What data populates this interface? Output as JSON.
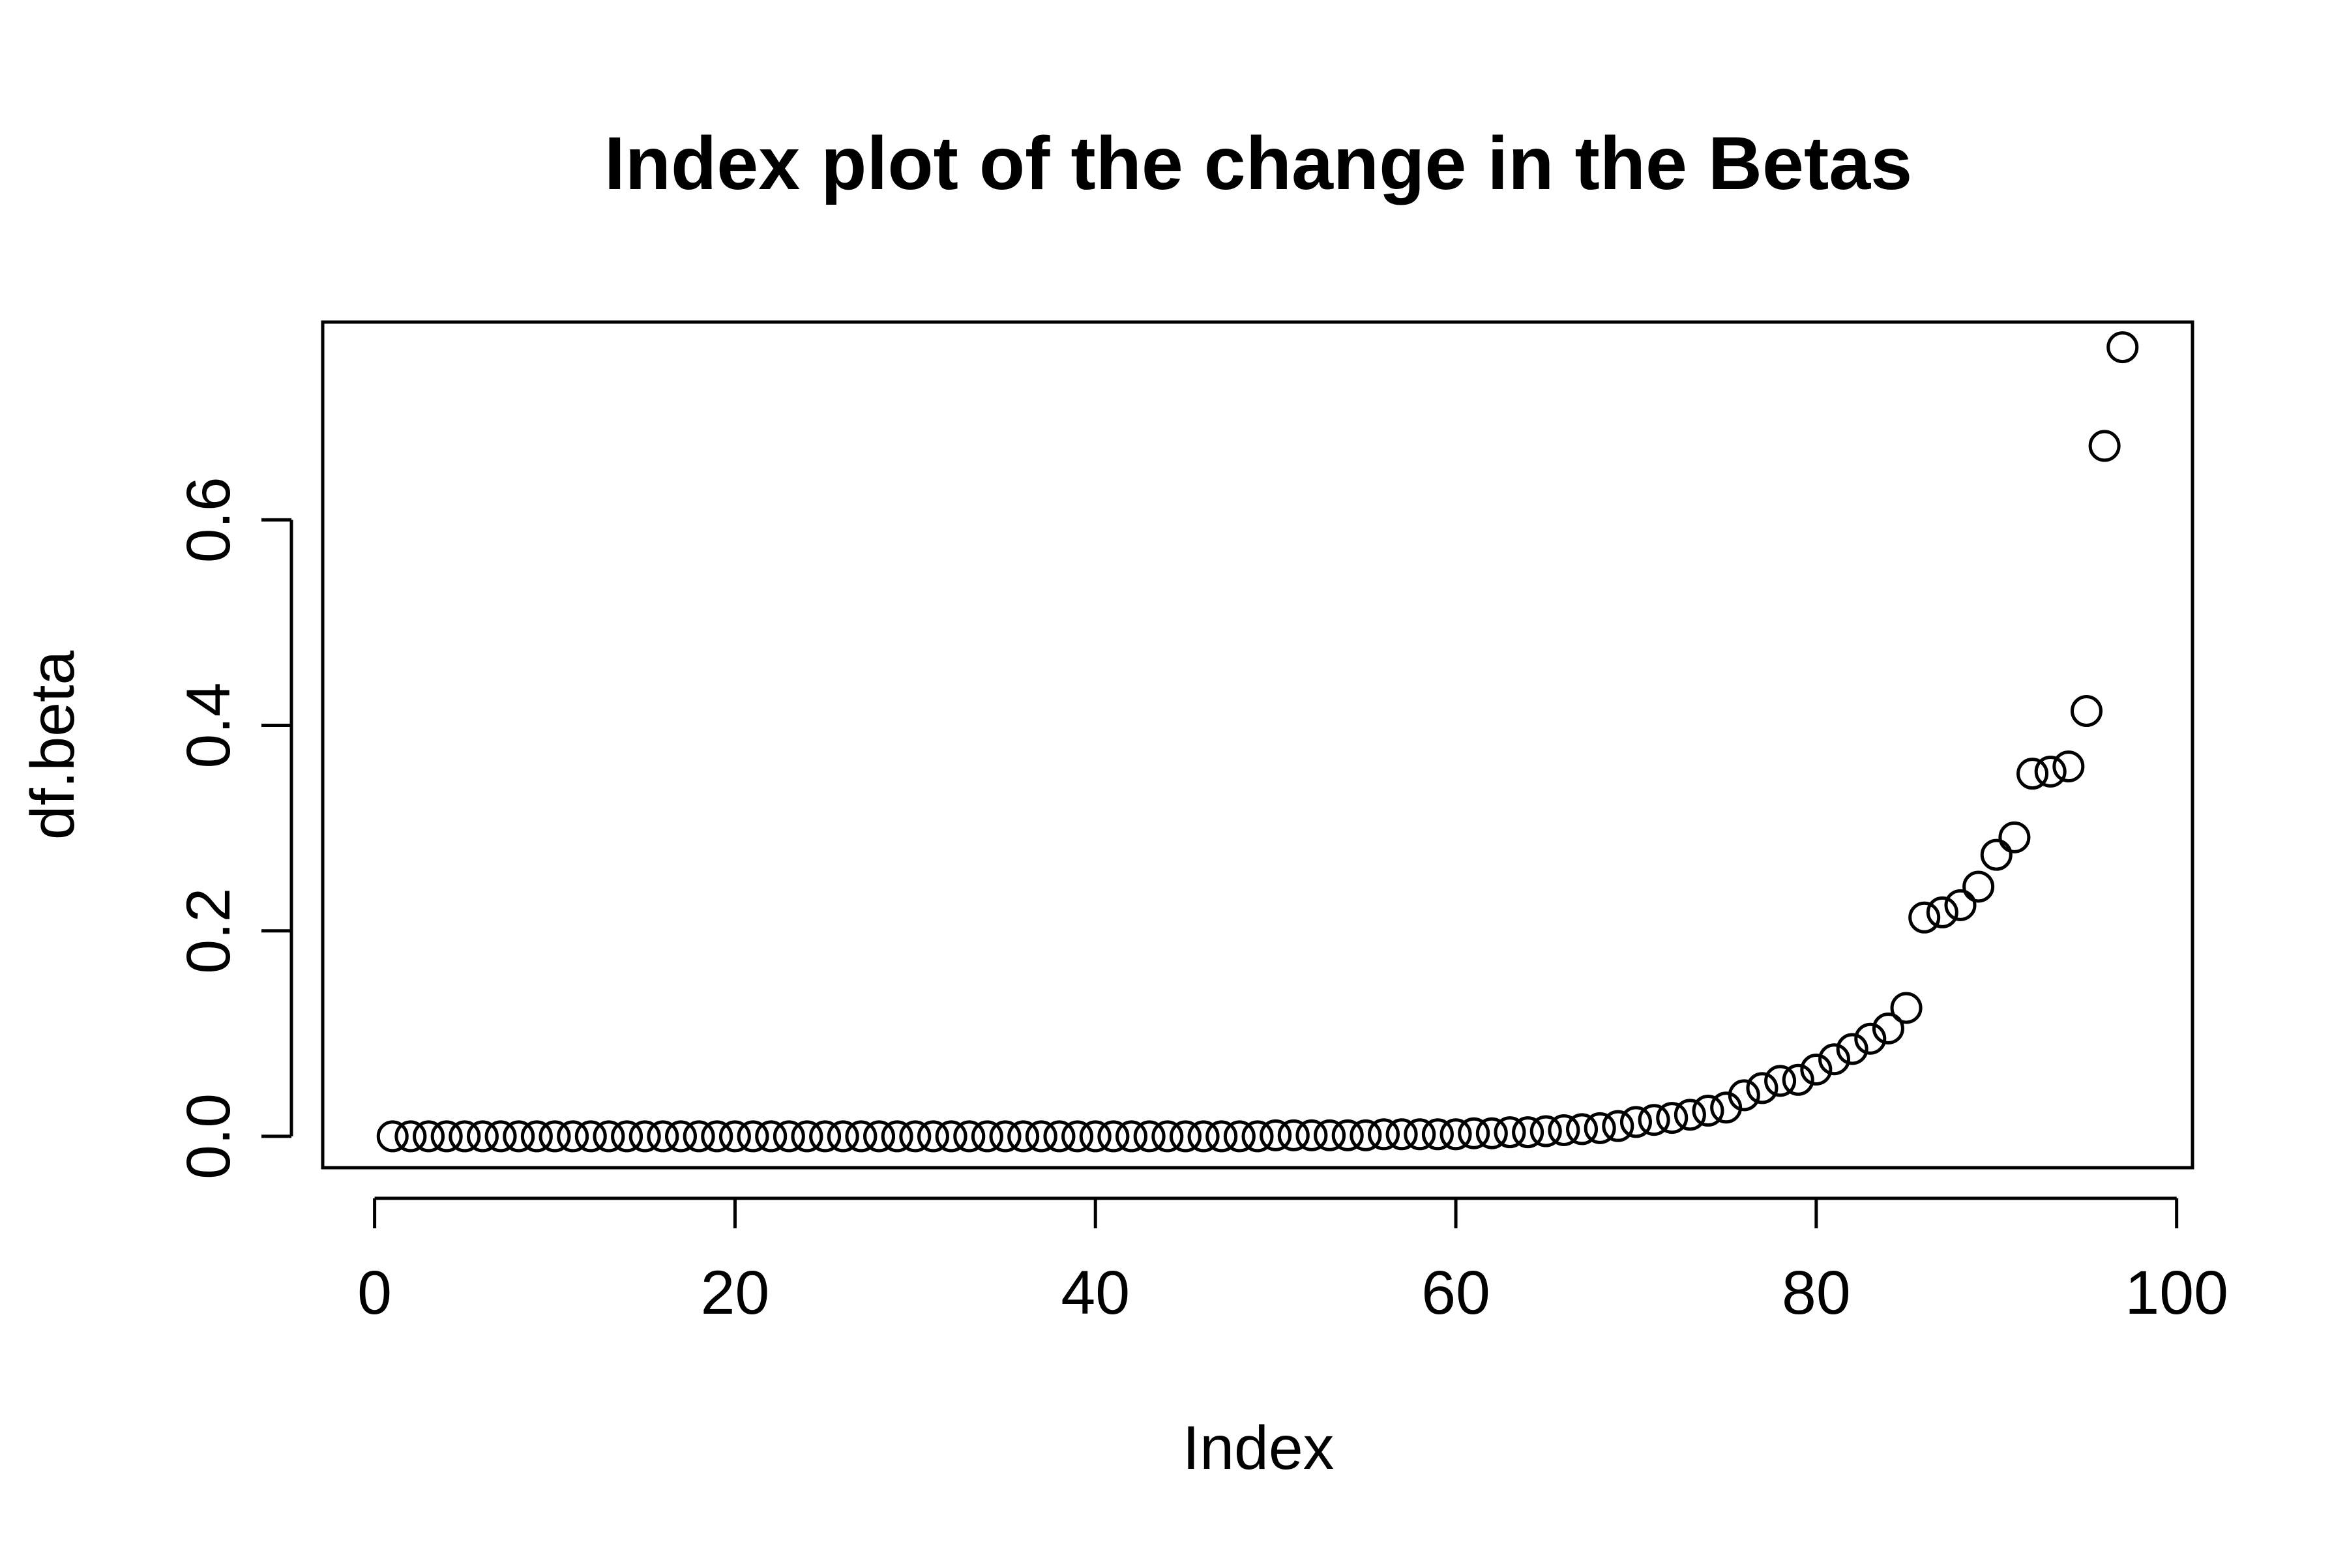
{
  "chart_data": {
    "type": "scatter",
    "title": "Index plot of the change in the Betas",
    "xlabel": "Index",
    "ylabel": "df.beta",
    "xlim": [
      -2.88,
      100.88
    ],
    "ylim": [
      -0.0305,
      0.7925
    ],
    "xticks": [
      0,
      20,
      40,
      60,
      80,
      100
    ],
    "yticks": [
      0.0,
      0.2,
      0.4,
      0.6
    ],
    "xtick_labels": [
      "0",
      "20",
      "40",
      "60",
      "80",
      "100"
    ],
    "ytick_labels": [
      "0.0",
      "0.2",
      "0.4",
      "0.6"
    ],
    "grid": false,
    "legend": "none",
    "marker": "open-circle",
    "x": [
      1,
      2,
      3,
      4,
      5,
      6,
      7,
      8,
      9,
      10,
      11,
      12,
      13,
      14,
      15,
      16,
      17,
      18,
      19,
      20,
      21,
      22,
      23,
      24,
      25,
      26,
      27,
      28,
      29,
      30,
      31,
      32,
      33,
      34,
      35,
      36,
      37,
      38,
      39,
      40,
      41,
      42,
      43,
      44,
      45,
      46,
      47,
      48,
      49,
      50,
      51,
      52,
      53,
      54,
      55,
      56,
      57,
      58,
      59,
      60,
      61,
      62,
      63,
      64,
      65,
      66,
      67,
      68,
      69,
      70,
      71,
      72,
      73,
      74,
      75,
      76,
      77,
      78,
      79,
      80,
      81,
      82,
      83,
      84,
      85,
      86,
      87,
      88,
      89,
      90,
      91,
      92,
      93,
      94,
      95,
      96,
      97
    ],
    "y": [
      0.0,
      0.0,
      0.0,
      0.0,
      0.0,
      0.0,
      0.0,
      0.0,
      0.0,
      0.0,
      0.0,
      0.0,
      0.0,
      0.0,
      0.0,
      0.0,
      0.0,
      0.0,
      0.0,
      0.0,
      0.0,
      0.0,
      0.0,
      0.0,
      0.0,
      0.0,
      0.0,
      0.0,
      0.0,
      0.0,
      0.0,
      0.0,
      0.0,
      0.0,
      0.0,
      0.0,
      0.0,
      0.0,
      0.0,
      0.0,
      0.0,
      0.0,
      0.0,
      0.0,
      0.0,
      0.0,
      0.0,
      0.0,
      0.0,
      0.001,
      0.001,
      0.001,
      0.001,
      0.001,
      0.001,
      0.002,
      0.002,
      0.002,
      0.002,
      0.002,
      0.003,
      0.003,
      0.004,
      0.004,
      0.005,
      0.006,
      0.007,
      0.008,
      0.01,
      0.014,
      0.016,
      0.018,
      0.021,
      0.025,
      0.028,
      0.04,
      0.047,
      0.054,
      0.055,
      0.065,
      0.075,
      0.085,
      0.095,
      0.105,
      0.125,
      0.213,
      0.218,
      0.225,
      0.243,
      0.274,
      0.291,
      0.353,
      0.355,
      0.36,
      0.414,
      0.672,
      0.768
    ]
  }
}
